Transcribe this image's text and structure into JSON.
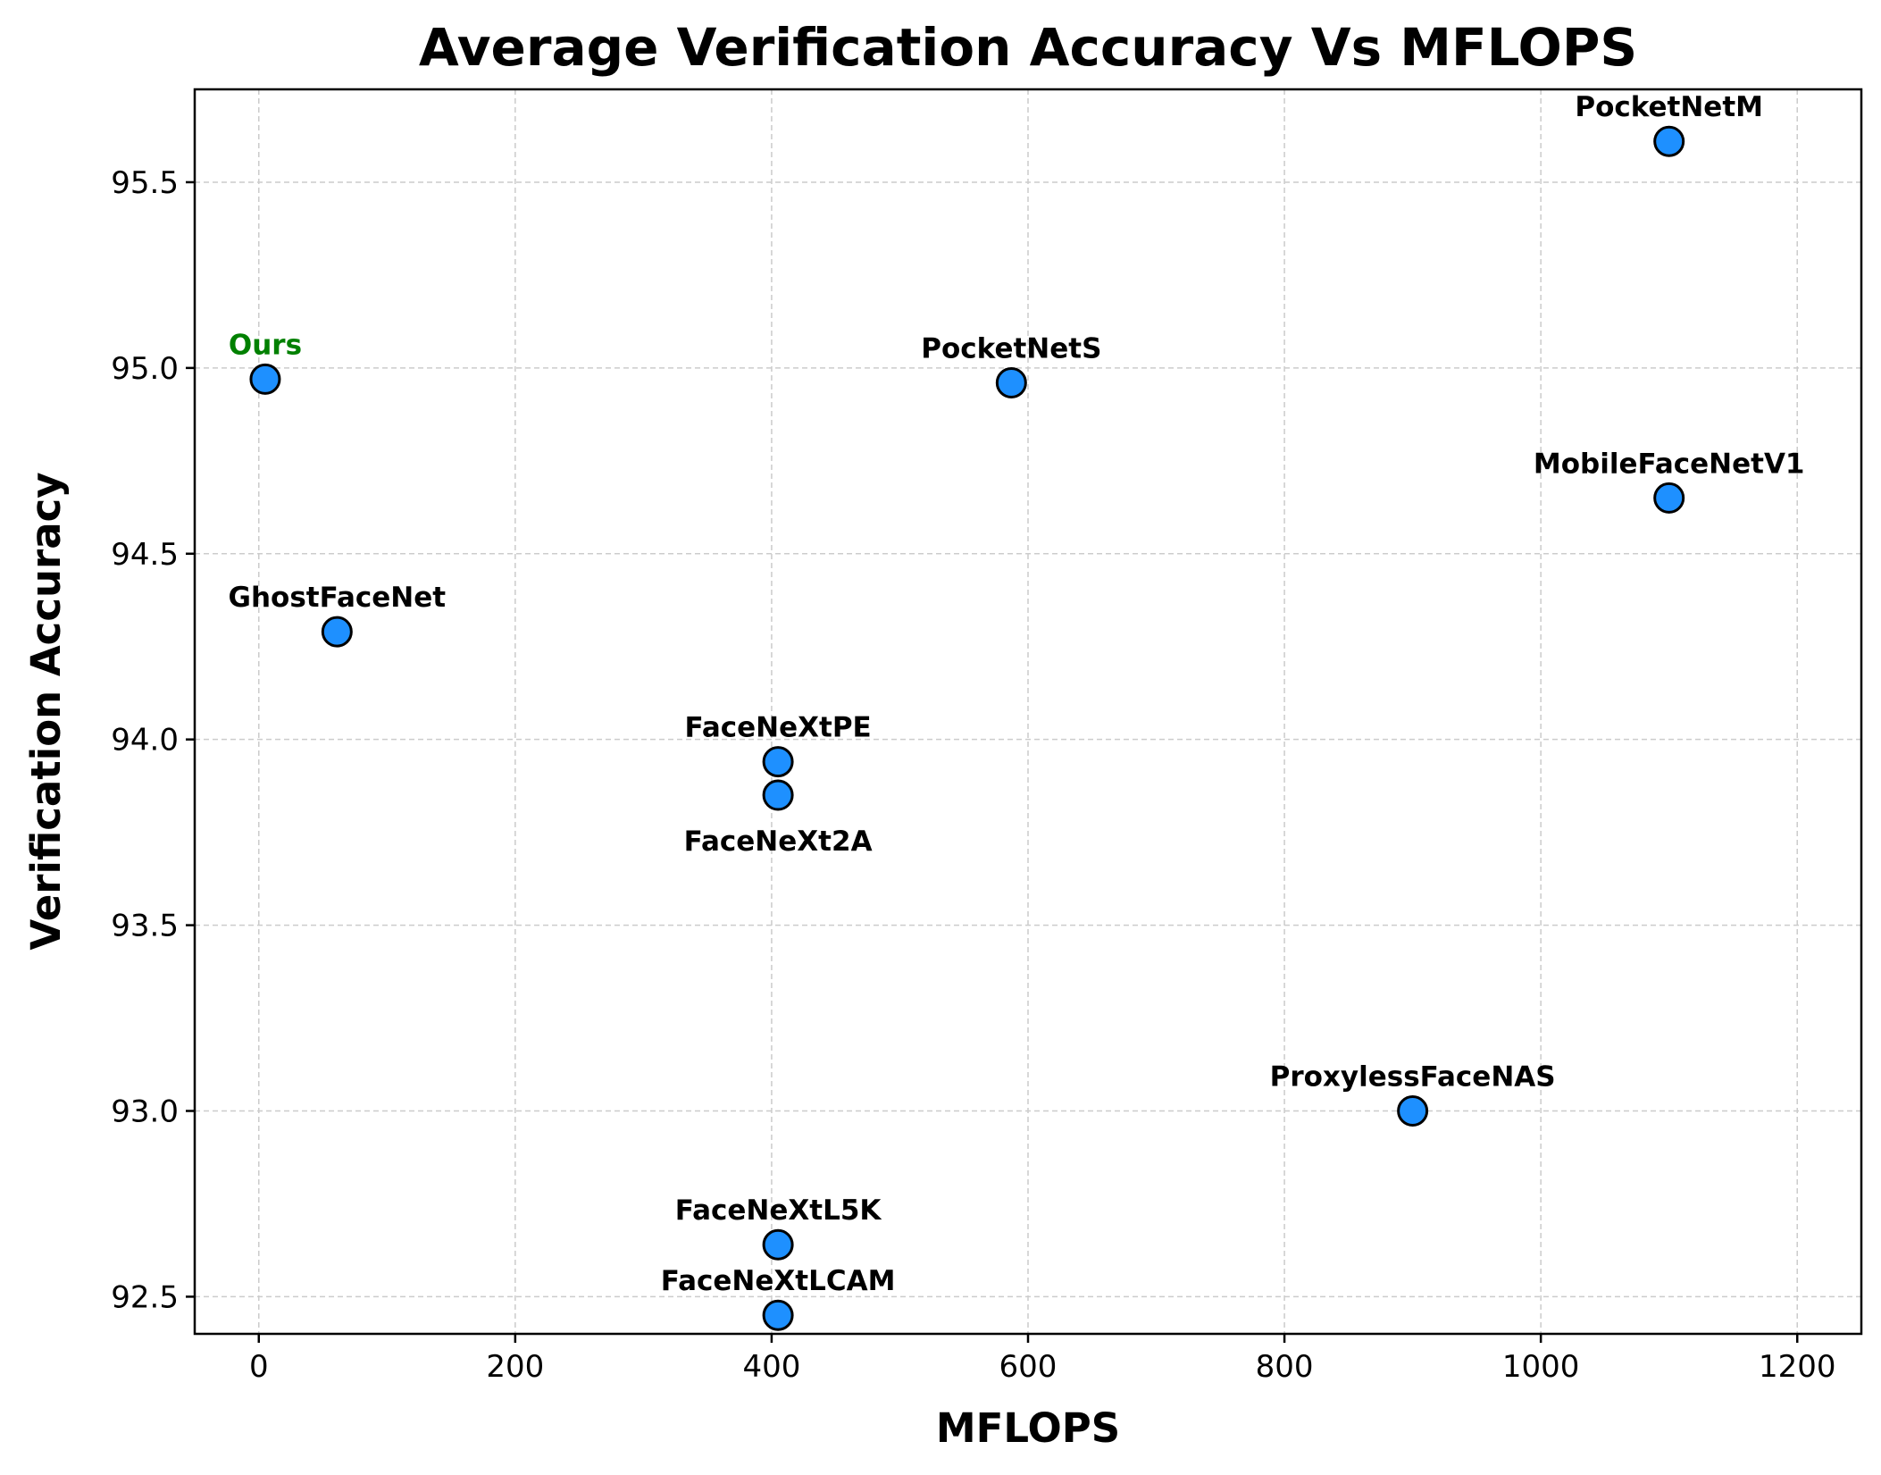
{
  "chart_data": {
    "type": "scatter",
    "title": "Average Verification Accuracy Vs MFLOPS",
    "xlabel": "MFLOPS",
    "ylabel": "Verification Accuracy",
    "xlim": [
      -50,
      1250
    ],
    "ylim": [
      92.4,
      95.75
    ],
    "xticks": [
      0,
      200,
      400,
      600,
      800,
      1000,
      1200
    ],
    "yticks": [
      92.5,
      93.0,
      93.5,
      94.0,
      94.5,
      95.0,
      95.5
    ],
    "xtick_labels": [
      "0",
      "200",
      "400",
      "600",
      "800",
      "1000",
      "1200"
    ],
    "ytick_labels": [
      "92.5",
      "93.0",
      "93.5",
      "94.0",
      "94.5",
      "95.0",
      "95.5"
    ],
    "grid": true,
    "marker_color": "#1E90FF",
    "marker_edge_color": "#000000",
    "label_color": "#000000",
    "highlight_color": "#008000",
    "points": [
      {
        "name": "Ours",
        "x": 5,
        "y": 94.97,
        "label_pos": "above",
        "highlight": true
      },
      {
        "name": "GhostFaceNet",
        "x": 61,
        "y": 94.29,
        "label_pos": "above",
        "highlight": false
      },
      {
        "name": "FaceNeXtPE",
        "x": 405,
        "y": 93.94,
        "label_pos": "above",
        "highlight": false
      },
      {
        "name": "FaceNeXt2A",
        "x": 405,
        "y": 93.85,
        "label_pos": "below",
        "highlight": false
      },
      {
        "name": "FaceNeXtL5K",
        "x": 405,
        "y": 92.64,
        "label_pos": "above",
        "highlight": false
      },
      {
        "name": "FaceNeXtLCAM",
        "x": 405,
        "y": 92.45,
        "label_pos": "above",
        "highlight": false
      },
      {
        "name": "PocketNetS",
        "x": 587,
        "y": 94.96,
        "label_pos": "above",
        "highlight": false
      },
      {
        "name": "ProxylessFaceNAS",
        "x": 900,
        "y": 93.0,
        "label_pos": "above",
        "highlight": false
      },
      {
        "name": "PocketNetM",
        "x": 1100,
        "y": 95.61,
        "label_pos": "above",
        "highlight": false
      },
      {
        "name": "MobileFaceNetV1",
        "x": 1100,
        "y": 94.65,
        "label_pos": "above",
        "highlight": false
      }
    ]
  }
}
